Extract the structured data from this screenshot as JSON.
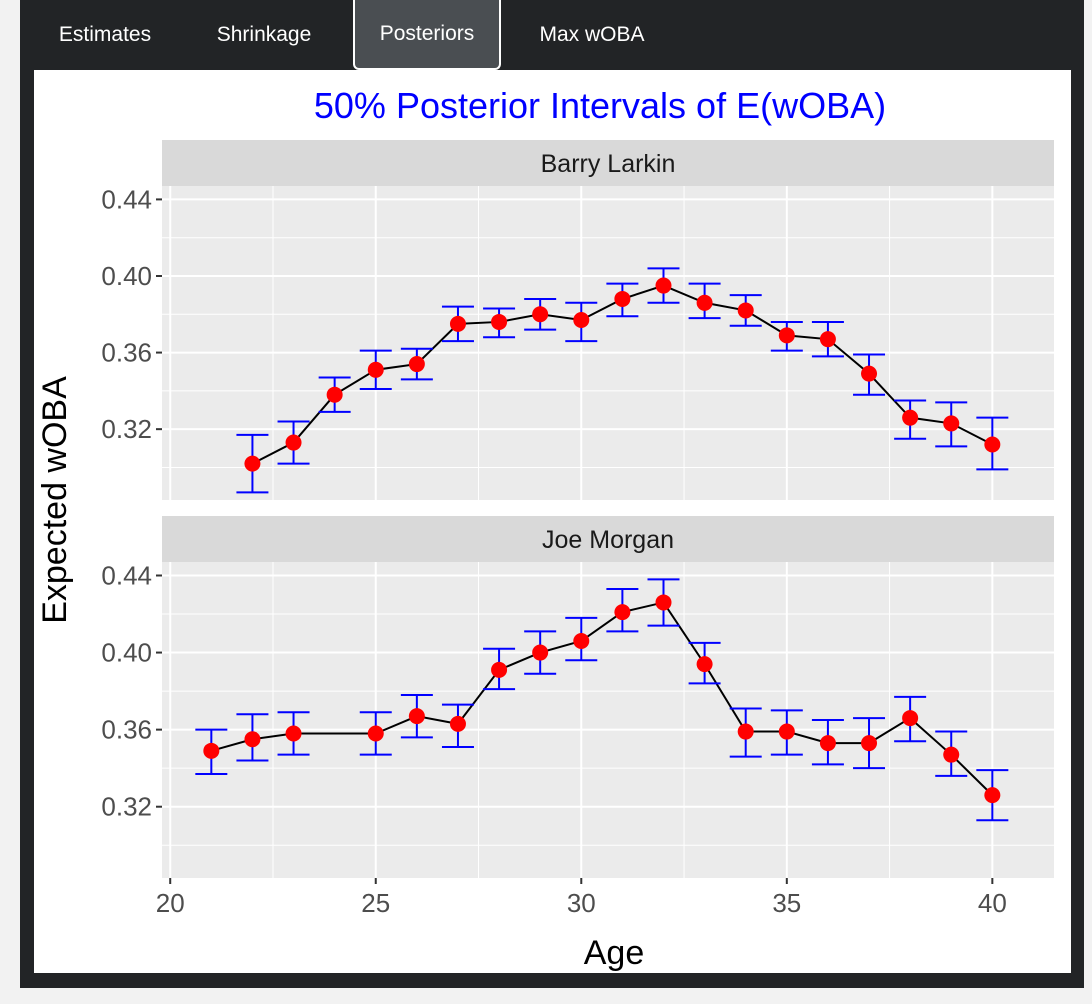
{
  "tabs": [
    {
      "label": "Estimates",
      "active": false
    },
    {
      "label": "Shrinkage",
      "active": false
    },
    {
      "label": "Posteriors",
      "active": true
    },
    {
      "label": "Max wOBA",
      "active": false
    }
  ],
  "colors": {
    "title": "#0000ff",
    "point": "#ff0000",
    "errorbar": "#0000ff",
    "line": "#000000",
    "panel_bg": "#ebebeb",
    "strip_bg": "#d9d9d9",
    "grid": "#ffffff"
  },
  "chart_data": {
    "type": "scatter",
    "title": "50% Posterior Intervals of E(wOBA)",
    "xlabel": "Age",
    "ylabel": "Expected wOBA",
    "xlim": [
      19.8,
      41.5
    ],
    "ylim": [
      0.283,
      0.447
    ],
    "x_ticks": [
      20,
      25,
      30,
      35,
      40
    ],
    "y_ticks": [
      0.32,
      0.36,
      0.4,
      0.44
    ],
    "x_tick_labels": [
      "20",
      "25",
      "30",
      "35",
      "40"
    ],
    "y_tick_labels": [
      "0.32",
      "0.36",
      "0.40",
      "0.44"
    ],
    "grid": true,
    "legend": "none",
    "panels": [
      {
        "name": "Barry Larkin",
        "points": [
          {
            "x": 22,
            "y": 0.302,
            "lo": 0.287,
            "hi": 0.317
          },
          {
            "x": 23,
            "y": 0.313,
            "lo": 0.302,
            "hi": 0.324
          },
          {
            "x": 24,
            "y": 0.338,
            "lo": 0.329,
            "hi": 0.347
          },
          {
            "x": 25,
            "y": 0.351,
            "lo": 0.341,
            "hi": 0.361
          },
          {
            "x": 26,
            "y": 0.354,
            "lo": 0.346,
            "hi": 0.362
          },
          {
            "x": 27,
            "y": 0.375,
            "lo": 0.366,
            "hi": 0.384
          },
          {
            "x": 28,
            "y": 0.376,
            "lo": 0.368,
            "hi": 0.383
          },
          {
            "x": 29,
            "y": 0.38,
            "lo": 0.372,
            "hi": 0.388
          },
          {
            "x": 30,
            "y": 0.377,
            "lo": 0.366,
            "hi": 0.386
          },
          {
            "x": 31,
            "y": 0.388,
            "lo": 0.379,
            "hi": 0.396
          },
          {
            "x": 32,
            "y": 0.395,
            "lo": 0.386,
            "hi": 0.404
          },
          {
            "x": 33,
            "y": 0.386,
            "lo": 0.378,
            "hi": 0.396
          },
          {
            "x": 34,
            "y": 0.382,
            "lo": 0.374,
            "hi": 0.39
          },
          {
            "x": 35,
            "y": 0.369,
            "lo": 0.361,
            "hi": 0.376
          },
          {
            "x": 36,
            "y": 0.367,
            "lo": 0.358,
            "hi": 0.376
          },
          {
            "x": 37,
            "y": 0.349,
            "lo": 0.338,
            "hi": 0.359
          },
          {
            "x": 38,
            "y": 0.326,
            "lo": 0.315,
            "hi": 0.335
          },
          {
            "x": 39,
            "y": 0.323,
            "lo": 0.311,
            "hi": 0.334
          },
          {
            "x": 40,
            "y": 0.312,
            "lo": 0.299,
            "hi": 0.326
          }
        ]
      },
      {
        "name": "Joe Morgan",
        "points": [
          {
            "x": 21,
            "y": 0.349,
            "lo": 0.337,
            "hi": 0.36
          },
          {
            "x": 22,
            "y": 0.355,
            "lo": 0.344,
            "hi": 0.368
          },
          {
            "x": 23,
            "y": 0.358,
            "lo": 0.347,
            "hi": 0.369
          },
          {
            "x": 25,
            "y": 0.358,
            "lo": 0.347,
            "hi": 0.369
          },
          {
            "x": 26,
            "y": 0.367,
            "lo": 0.356,
            "hi": 0.378
          },
          {
            "x": 27,
            "y": 0.363,
            "lo": 0.351,
            "hi": 0.373
          },
          {
            "x": 28,
            "y": 0.391,
            "lo": 0.381,
            "hi": 0.402
          },
          {
            "x": 29,
            "y": 0.4,
            "lo": 0.389,
            "hi": 0.411
          },
          {
            "x": 30,
            "y": 0.406,
            "lo": 0.396,
            "hi": 0.418
          },
          {
            "x": 31,
            "y": 0.421,
            "lo": 0.411,
            "hi": 0.433
          },
          {
            "x": 32,
            "y": 0.426,
            "lo": 0.414,
            "hi": 0.438
          },
          {
            "x": 33,
            "y": 0.394,
            "lo": 0.384,
            "hi": 0.405
          },
          {
            "x": 34,
            "y": 0.359,
            "lo": 0.346,
            "hi": 0.371
          },
          {
            "x": 35,
            "y": 0.359,
            "lo": 0.347,
            "hi": 0.37
          },
          {
            "x": 36,
            "y": 0.353,
            "lo": 0.342,
            "hi": 0.365
          },
          {
            "x": 37,
            "y": 0.353,
            "lo": 0.34,
            "hi": 0.366
          },
          {
            "x": 38,
            "y": 0.366,
            "lo": 0.354,
            "hi": 0.377
          },
          {
            "x": 39,
            "y": 0.347,
            "lo": 0.336,
            "hi": 0.359
          },
          {
            "x": 40,
            "y": 0.326,
            "lo": 0.313,
            "hi": 0.339
          }
        ]
      }
    ]
  }
}
